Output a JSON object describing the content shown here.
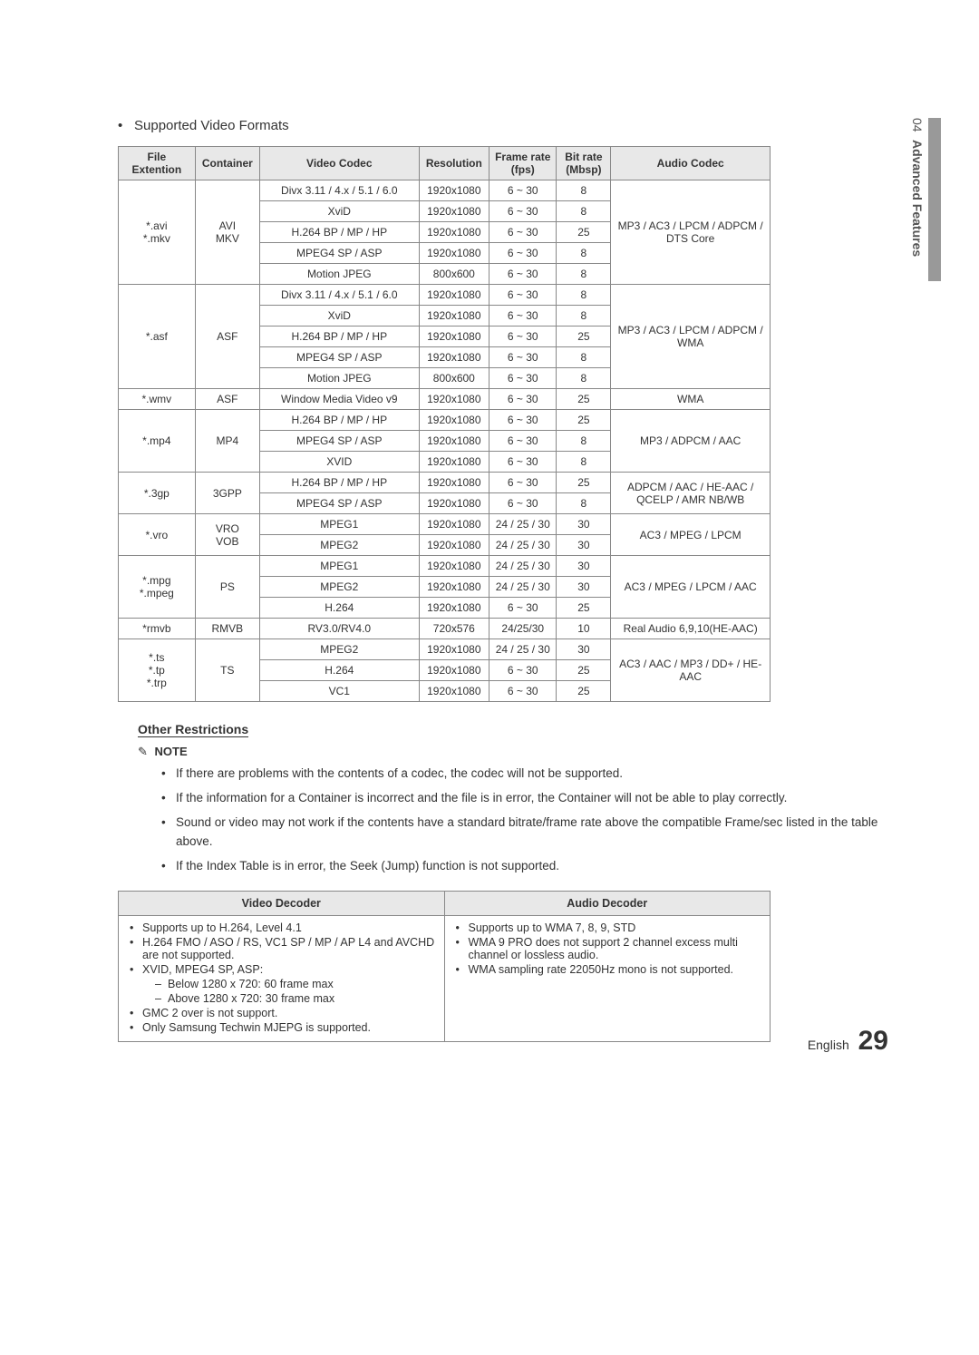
{
  "side_tab": {
    "number": "04",
    "label": "Advanced Features"
  },
  "section_title": "Supported Video Formats",
  "headers": {
    "file_ext": "File Extention",
    "container": "Container",
    "video_codec": "Video Codec",
    "resolution": "Resolution",
    "frame_rate": "Frame rate (fps)",
    "bit_rate": "Bit rate (Mbsp)",
    "audio_codec": "Audio Codec"
  },
  "rows": [
    {
      "file_ext": "*.avi\n*.mkv",
      "file_ext_span": 5,
      "container": "AVI\nMKV",
      "container_span": 5,
      "video_codec": "Divx 3.11 / 4.x / 5.1 / 6.0",
      "resolution": "1920x1080",
      "frame_rate": "6 ~ 30",
      "bit_rate": "8",
      "audio_codec": "MP3 / AC3 / LPCM / ADPCM / DTS Core",
      "audio_span": 5
    },
    {
      "video_codec": "XviD",
      "resolution": "1920x1080",
      "frame_rate": "6 ~ 30",
      "bit_rate": "8"
    },
    {
      "video_codec": "H.264 BP / MP / HP",
      "resolution": "1920x1080",
      "frame_rate": "6 ~ 30",
      "bit_rate": "25"
    },
    {
      "video_codec": "MPEG4 SP / ASP",
      "resolution": "1920x1080",
      "frame_rate": "6 ~ 30",
      "bit_rate": "8"
    },
    {
      "video_codec": "Motion JPEG",
      "resolution": "800x600",
      "frame_rate": "6 ~ 30",
      "bit_rate": "8"
    },
    {
      "file_ext": "*.asf",
      "file_ext_span": 5,
      "container": "ASF",
      "container_span": 5,
      "video_codec": "Divx 3.11 / 4.x / 5.1 / 6.0",
      "resolution": "1920x1080",
      "frame_rate": "6 ~ 30",
      "bit_rate": "8",
      "audio_codec": "MP3 / AC3 / LPCM / ADPCM / WMA",
      "audio_span": 5
    },
    {
      "video_codec": "XviD",
      "resolution": "1920x1080",
      "frame_rate": "6 ~ 30",
      "bit_rate": "8"
    },
    {
      "video_codec": "H.264 BP / MP / HP",
      "resolution": "1920x1080",
      "frame_rate": "6 ~ 30",
      "bit_rate": "25"
    },
    {
      "video_codec": "MPEG4 SP / ASP",
      "resolution": "1920x1080",
      "frame_rate": "6 ~ 30",
      "bit_rate": "8"
    },
    {
      "video_codec": "Motion JPEG",
      "resolution": "800x600",
      "frame_rate": "6 ~ 30",
      "bit_rate": "8"
    },
    {
      "file_ext": "*.wmv",
      "file_ext_span": 1,
      "container": "ASF",
      "container_span": 1,
      "video_codec": "Window Media Video v9",
      "resolution": "1920x1080",
      "frame_rate": "6 ~ 30",
      "bit_rate": "25",
      "audio_codec": "WMA",
      "audio_span": 1
    },
    {
      "file_ext": "*.mp4",
      "file_ext_span": 3,
      "container": "MP4",
      "container_span": 3,
      "video_codec": "H.264 BP / MP / HP",
      "resolution": "1920x1080",
      "frame_rate": "6 ~ 30",
      "bit_rate": "25",
      "audio_codec": "MP3 / ADPCM / AAC",
      "audio_span": 3
    },
    {
      "video_codec": "MPEG4 SP / ASP",
      "resolution": "1920x1080",
      "frame_rate": "6 ~ 30",
      "bit_rate": "8"
    },
    {
      "video_codec": "XVID",
      "resolution": "1920x1080",
      "frame_rate": "6 ~ 30",
      "bit_rate": "8"
    },
    {
      "file_ext": "*.3gp",
      "file_ext_span": 2,
      "container": "3GPP",
      "container_span": 2,
      "video_codec": "H.264 BP / MP / HP",
      "resolution": "1920x1080",
      "frame_rate": "6 ~ 30",
      "bit_rate": "25",
      "audio_codec": "ADPCM / AAC / HE-AAC / QCELP / AMR NB/WB",
      "audio_span": 2
    },
    {
      "video_codec": "MPEG4 SP / ASP",
      "resolution": "1920x1080",
      "frame_rate": "6 ~ 30",
      "bit_rate": "8"
    },
    {
      "file_ext": "*.vro",
      "file_ext_span": 2,
      "container": "VRO\nVOB",
      "container_span": 2,
      "video_codec": "MPEG1",
      "resolution": "1920x1080",
      "frame_rate": "24 / 25 / 30",
      "bit_rate": "30",
      "audio_codec": "AC3 / MPEG / LPCM",
      "audio_span": 2
    },
    {
      "video_codec": "MPEG2",
      "resolution": "1920x1080",
      "frame_rate": "24 / 25 / 30",
      "bit_rate": "30"
    },
    {
      "file_ext": "*.mpg\n*.mpeg",
      "file_ext_span": 3,
      "container": "PS",
      "container_span": 3,
      "video_codec": "MPEG1",
      "resolution": "1920x1080",
      "frame_rate": "24 / 25 / 30",
      "bit_rate": "30",
      "audio_codec": "AC3 / MPEG / LPCM / AAC",
      "audio_span": 3
    },
    {
      "video_codec": "MPEG2",
      "resolution": "1920x1080",
      "frame_rate": "24 / 25 / 30",
      "bit_rate": "30"
    },
    {
      "video_codec": "H.264",
      "resolution": "1920x1080",
      "frame_rate": "6 ~ 30",
      "bit_rate": "25"
    },
    {
      "file_ext": "*rmvb",
      "file_ext_span": 1,
      "container": "RMVB",
      "container_span": 1,
      "video_codec": "RV3.0/RV4.0",
      "resolution": "720x576",
      "frame_rate": "24/25/30",
      "bit_rate": "10",
      "audio_codec": "Real Audio 6,9,10(HE-AAC)",
      "audio_span": 1
    },
    {
      "file_ext": "*.ts\n*.tp\n*.trp",
      "file_ext_span": 3,
      "container": "TS",
      "container_span": 3,
      "video_codec": "MPEG2",
      "resolution": "1920x1080",
      "frame_rate": "24 / 25 / 30",
      "bit_rate": "30",
      "audio_codec": "AC3 / AAC / MP3 / DD+ / HE-AAC",
      "audio_span": 3
    },
    {
      "video_codec": "H.264",
      "resolution": "1920x1080",
      "frame_rate": "6 ~ 30",
      "bit_rate": "25"
    },
    {
      "video_codec": "VC1",
      "resolution": "1920x1080",
      "frame_rate": "6 ~ 30",
      "bit_rate": "25"
    }
  ],
  "other_restrictions_title": "Other Restrictions",
  "note_label": "NOTE",
  "notes": [
    "If there are problems with the contents of a codec, the codec will not be supported.",
    "If the information for a Container is incorrect and the file is in error, the Container will not be able to play correctly.",
    "Sound or video may not work if the contents have a standard bitrate/frame rate above the compatible Frame/sec listed in the table above.",
    "If the Index Table is in error, the Seek (Jump) function is not supported."
  ],
  "decoder_headers": {
    "video": "Video Decoder",
    "audio": "Audio Decoder"
  },
  "video_decoder": [
    "Supports up to H.264, Level 4.1",
    "H.264 FMO / ASO / RS, VC1 SP / MP / AP L4 and AVCHD are not supported.",
    "XVID, MPEG4 SP, ASP:|Below 1280 x 720: 60 frame max|Above 1280 x 720: 30 frame max",
    "GMC 2 over is not support.",
    "Only Samsung Techwin MJEPG is supported."
  ],
  "audio_decoder": [
    "Supports up to WMA 7, 8, 9, STD",
    "WMA 9 PRO does not support 2 channel excess multi channel or lossless audio.",
    "WMA sampling rate 22050Hz mono is not supported."
  ],
  "footer": {
    "lang": "English",
    "page": "29"
  },
  "col_widths": [
    "82px",
    "68px",
    "170px",
    "68px",
    "72px",
    "58px",
    "170px"
  ]
}
